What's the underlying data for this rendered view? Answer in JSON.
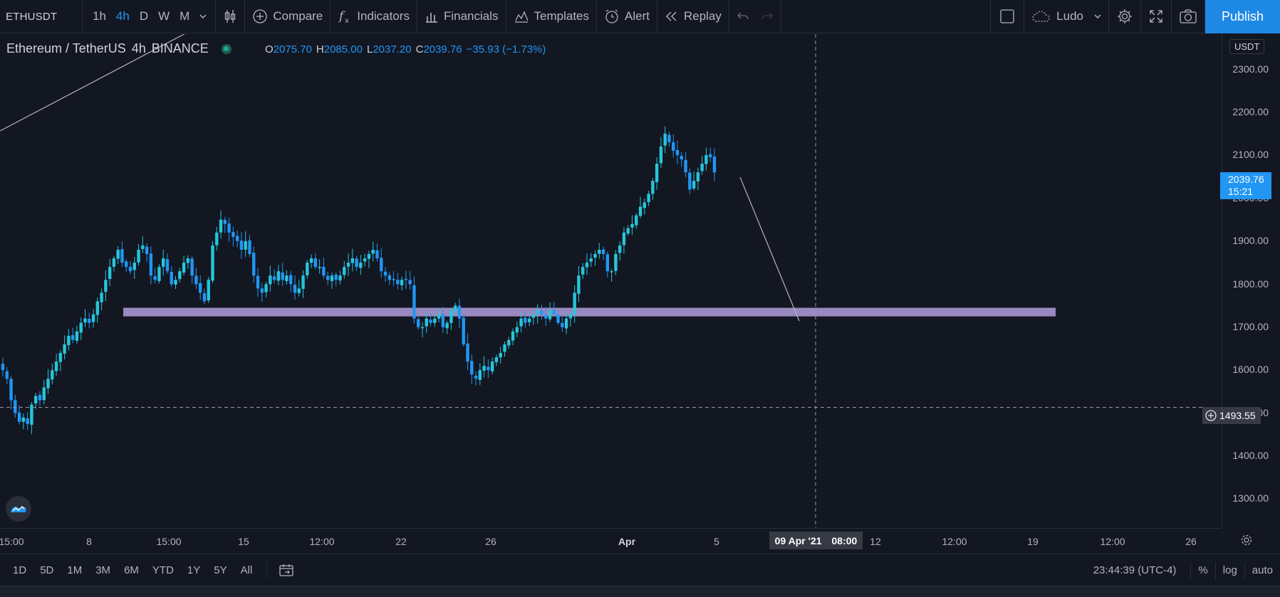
{
  "toolbar": {
    "symbol": "ETHUSDT",
    "intervals": [
      "1h",
      "4h",
      "D",
      "W",
      "M"
    ],
    "active_interval": "4h",
    "compare_label": "Compare",
    "indicators_label": "Indicators",
    "financials_label": "Financials",
    "templates_label": "Templates",
    "alert_label": "Alert",
    "replay_label": "Replay",
    "layout_name": "Ludo",
    "publish_label": "Publish"
  },
  "legend": {
    "title": "Ethereum / TetherUS",
    "interval": "4h",
    "exchange": "BINANCE",
    "open_key": "O",
    "open": "2075.70",
    "high_key": "H",
    "high": "2085.00",
    "low_key": "L",
    "low": "2037.20",
    "close_key": "C",
    "close": "2039.76",
    "change": "−35.93 (−1.73%)"
  },
  "price_axis": {
    "currency": "USDT",
    "labels": [
      "2300.00",
      "2200.00",
      "2100.00",
      "2000.00",
      "1900.00",
      "1800.00",
      "1700.00",
      "1600.00",
      "1500.00",
      "1400.00",
      "1300.00"
    ],
    "last_price": "2039.76",
    "countdown": "15:21",
    "crosshair_price": "1493.55"
  },
  "time_axis": {
    "labels": [
      "15:00",
      "8",
      "15:00",
      "15",
      "12:00",
      "22",
      "26",
      "Apr",
      "5",
      "12",
      "12:00",
      "19",
      "12:00",
      "26"
    ],
    "crosshair_date": "09 Apr '21",
    "crosshair_time": "08:00"
  },
  "bottom_bar": {
    "ranges": [
      "1D",
      "5D",
      "1M",
      "3M",
      "6M",
      "YTD",
      "1Y",
      "5Y",
      "All"
    ],
    "clock": "23:44:39 (UTC-4)",
    "percent": "%",
    "log": "log",
    "auto": "auto"
  },
  "colors": {
    "background": "#131722",
    "candle_up": "#26c6da",
    "candle_down": "#2196f3",
    "zone": "#b39ddb",
    "accent": "#2196f3"
  },
  "chart_data": {
    "type": "candlestick",
    "symbol": "ETHUSDT",
    "interval": "4h",
    "ylim": [
      1230,
      2370
    ],
    "closes": [
      1580,
      1560,
      1510,
      1480,
      1460,
      1470,
      1455,
      1500,
      1520,
      1510,
      1540,
      1560,
      1580,
      1600,
      1620,
      1640,
      1660,
      1650,
      1670,
      1690,
      1700,
      1690,
      1710,
      1740,
      1760,
      1790,
      1820,
      1840,
      1860,
      1830,
      1820,
      1810,
      1830,
      1860,
      1870,
      1850,
      1800,
      1790,
      1820,
      1840,
      1810,
      1780,
      1790,
      1810,
      1830,
      1840,
      1800,
      1780,
      1760,
      1740,
      1790,
      1870,
      1900,
      1930,
      1920,
      1900,
      1890,
      1880,
      1860,
      1880,
      1850,
      1800,
      1770,
      1760,
      1780,
      1800,
      1790,
      1810,
      1790,
      1800,
      1780,
      1760,
      1770,
      1800,
      1830,
      1840,
      1820,
      1820,
      1800,
      1790,
      1800,
      1790,
      1800,
      1820,
      1830,
      1840,
      1820,
      1830,
      1840,
      1850,
      1860,
      1840,
      1810,
      1800,
      1790,
      1790,
      1780,
      1790,
      1790,
      1780,
      1700,
      1680,
      1680,
      1700,
      1690,
      1700,
      1710,
      1680,
      1690,
      1720,
      1730,
      1700,
      1640,
      1600,
      1570,
      1560,
      1580,
      1590,
      1580,
      1600,
      1610,
      1620,
      1640,
      1650,
      1670,
      1680,
      1700,
      1690,
      1700,
      1710,
      1720,
      1710,
      1700,
      1720,
      1710,
      1690,
      1680,
      1700,
      1710,
      1760,
      1800,
      1820,
      1830,
      1840,
      1850,
      1860,
      1850,
      1810,
      1810,
      1850,
      1870,
      1900,
      1910,
      1920,
      1940,
      1960,
      1970,
      1990,
      2020,
      2060,
      2100,
      2130,
      2110,
      2090,
      2080,
      2070,
      2040,
      2000,
      2020,
      2040,
      2060,
      2080,
      2075,
      2039.76
    ],
    "support_zone": [
      1710,
      1730
    ],
    "crosshair": {
      "time": "09 Apr '21 08:00",
      "price": 1493.55
    },
    "last": 2039.76
  }
}
